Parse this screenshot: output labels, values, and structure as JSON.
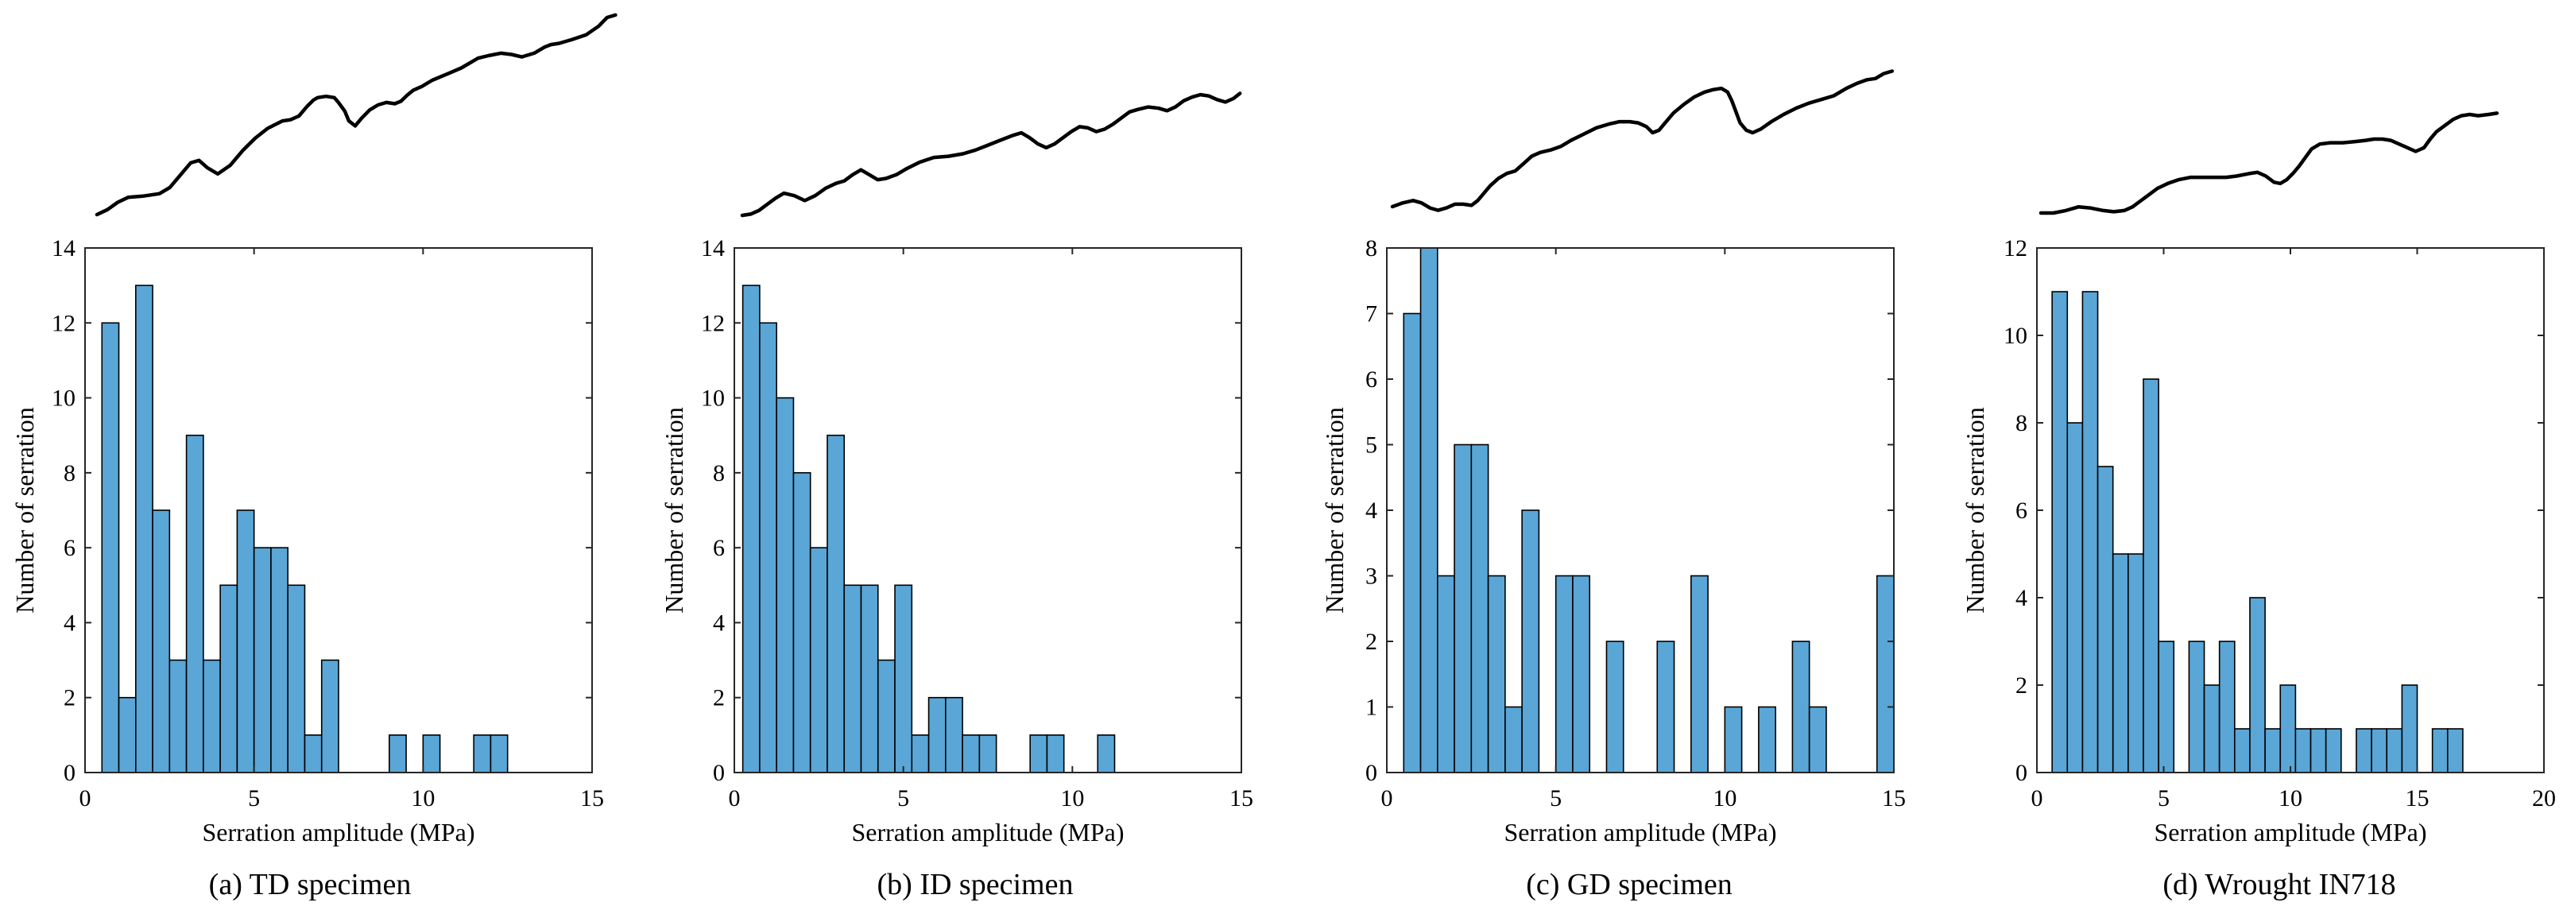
{
  "chart_data": [
    {
      "type": "bar",
      "panel_id": "a",
      "caption": "(a) TD specimen",
      "xlabel": "Serration amplitude (MPa)",
      "ylabel": "Number of serration",
      "xlim": [
        0,
        15
      ],
      "ylim": [
        0,
        14
      ],
      "xticks": [
        "0",
        "5",
        "10",
        "15"
      ],
      "yticks": [
        "0",
        "2",
        "4",
        "6",
        "8",
        "10",
        "12",
        "14"
      ],
      "bin_start": 0.5,
      "bin_width": 0.5,
      "values": [
        12,
        2,
        13,
        7,
        3,
        9,
        3,
        5,
        7,
        6,
        6,
        5,
        1,
        3,
        0,
        0,
        0,
        1,
        0,
        1,
        0,
        0,
        1,
        1,
        0,
        0,
        0,
        0,
        0
      ],
      "bar_color": "#5aa6d6",
      "curve_points": [
        [
          0,
          0
        ],
        [
          5,
          4
        ],
        [
          10,
          10
        ],
        [
          15,
          14
        ],
        [
          22,
          15
        ],
        [
          30,
          17
        ],
        [
          35,
          22
        ],
        [
          40,
          32
        ],
        [
          45,
          42
        ],
        [
          49,
          44
        ],
        [
          53,
          38
        ],
        [
          58,
          33
        ],
        [
          64,
          40
        ],
        [
          70,
          52
        ],
        [
          76,
          62
        ],
        [
          82,
          70
        ],
        [
          89,
          76
        ],
        [
          93,
          77
        ],
        [
          97,
          80
        ],
        [
          101,
          88
        ],
        [
          104,
          93
        ],
        [
          106,
          95
        ],
        [
          110,
          96
        ],
        [
          114,
          95
        ],
        [
          116,
          91
        ],
        [
          119,
          84
        ],
        [
          121,
          76
        ],
        [
          124,
          72
        ],
        [
          127,
          78
        ],
        [
          131,
          85
        ],
        [
          135,
          89
        ],
        [
          139,
          91
        ],
        [
          143,
          90
        ],
        [
          146,
          92
        ],
        [
          149,
          97
        ],
        [
          152,
          101
        ],
        [
          156,
          104
        ],
        [
          161,
          109
        ],
        [
          168,
          114
        ],
        [
          175,
          119
        ],
        [
          180,
          124
        ],
        [
          183,
          127
        ],
        [
          188,
          129
        ],
        [
          194,
          131
        ],
        [
          199,
          130
        ],
        [
          204,
          128
        ],
        [
          210,
          131
        ],
        [
          215,
          136
        ],
        [
          218,
          138
        ],
        [
          222,
          139
        ],
        [
          228,
          142
        ],
        [
          235,
          146
        ],
        [
          241,
          153
        ],
        [
          245,
          160
        ],
        [
          249,
          162
        ]
      ]
    },
    {
      "type": "bar",
      "panel_id": "b",
      "caption": "(b) ID specimen",
      "xlabel": "Serration amplitude (MPa)",
      "ylabel": "Number of serration",
      "xlim": [
        0,
        15
      ],
      "ylim": [
        0,
        14
      ],
      "xticks": [
        "0",
        "5",
        "10",
        "15"
      ],
      "yticks": [
        "0",
        "2",
        "4",
        "6",
        "8",
        "10",
        "12",
        "14"
      ],
      "bin_start": 0.25,
      "bin_width": 0.5,
      "values": [
        13,
        12,
        10,
        8,
        6,
        9,
        5,
        5,
        3,
        5,
        1,
        2,
        2,
        1,
        1,
        0,
        0,
        1,
        1,
        0,
        0,
        1,
        0,
        0,
        0,
        0,
        0,
        0,
        0
      ],
      "bar_color": "#5aa6d6",
      "curve_points": [
        [
          0,
          0
        ],
        [
          4,
          1
        ],
        [
          8,
          4
        ],
        [
          12,
          9
        ],
        [
          16,
          14
        ],
        [
          20,
          18
        ],
        [
          25,
          16
        ],
        [
          30,
          12
        ],
        [
          35,
          16
        ],
        [
          40,
          22
        ],
        [
          45,
          26
        ],
        [
          49,
          28
        ],
        [
          53,
          33
        ],
        [
          57,
          37
        ],
        [
          61,
          33
        ],
        [
          65,
          29
        ],
        [
          69,
          30
        ],
        [
          74,
          33
        ],
        [
          79,
          38
        ],
        [
          85,
          43
        ],
        [
          92,
          47
        ],
        [
          99,
          48
        ],
        [
          106,
          50
        ],
        [
          112,
          53
        ],
        [
          118,
          57
        ],
        [
          124,
          61
        ],
        [
          130,
          65
        ],
        [
          134,
          67
        ],
        [
          138,
          63
        ],
        [
          142,
          58
        ],
        [
          146,
          55
        ],
        [
          150,
          58
        ],
        [
          154,
          63
        ],
        [
          158,
          68
        ],
        [
          162,
          72
        ],
        [
          166,
          71
        ],
        [
          170,
          68
        ],
        [
          174,
          70
        ],
        [
          178,
          74
        ],
        [
          182,
          79
        ],
        [
          186,
          84
        ],
        [
          190,
          86
        ],
        [
          195,
          88
        ],
        [
          200,
          87
        ],
        [
          204,
          85
        ],
        [
          208,
          88
        ],
        [
          212,
          93
        ],
        [
          216,
          96
        ],
        [
          220,
          98
        ],
        [
          224,
          97
        ],
        [
          228,
          94
        ],
        [
          232,
          92
        ],
        [
          236,
          95
        ],
        [
          239,
          99
        ]
      ]
    },
    {
      "type": "bar",
      "panel_id": "c",
      "caption": "(c) GD specimen",
      "xlabel": "Serration amplitude (MPa)",
      "ylabel": "Number of serration",
      "xlim": [
        0,
        15
      ],
      "ylim": [
        0,
        8
      ],
      "xticks": [
        "0",
        "5",
        "10",
        "15"
      ],
      "yticks": [
        "0",
        "1",
        "2",
        "3",
        "4",
        "5",
        "6",
        "7",
        "8"
      ],
      "bin_start": 0.5,
      "bin_width": 0.5,
      "values": [
        7,
        8,
        3,
        5,
        5,
        3,
        1,
        4,
        0,
        3,
        3,
        0,
        2,
        0,
        0,
        2,
        0,
        3,
        0,
        1,
        0,
        1,
        0,
        2,
        1,
        0,
        0,
        0,
        3
      ],
      "bar_color": "#5aa6d6",
      "curve_points": [
        [
          0,
          0
        ],
        [
          5,
          3
        ],
        [
          10,
          5
        ],
        [
          14,
          3
        ],
        [
          18,
          -1
        ],
        [
          22,
          -3
        ],
        [
          26,
          -1
        ],
        [
          30,
          2
        ],
        [
          34,
          2
        ],
        [
          38,
          1
        ],
        [
          41,
          5
        ],
        [
          44,
          11
        ],
        [
          47,
          17
        ],
        [
          51,
          23
        ],
        [
          55,
          27
        ],
        [
          59,
          29
        ],
        [
          63,
          35
        ],
        [
          67,
          41
        ],
        [
          71,
          44
        ],
        [
          76,
          46
        ],
        [
          81,
          49
        ],
        [
          86,
          54
        ],
        [
          92,
          59
        ],
        [
          98,
          64
        ],
        [
          104,
          67
        ],
        [
          109,
          69
        ],
        [
          114,
          69
        ],
        [
          118,
          68
        ],
        [
          122,
          65
        ],
        [
          125,
          60
        ],
        [
          128,
          62
        ],
        [
          131,
          68
        ],
        [
          135,
          76
        ],
        [
          140,
          83
        ],
        [
          145,
          89
        ],
        [
          150,
          93
        ],
        [
          154,
          95
        ],
        [
          158,
          96
        ],
        [
          161,
          93
        ],
        [
          163,
          86
        ],
        [
          165,
          77
        ],
        [
          167,
          68
        ],
        [
          170,
          62
        ],
        [
          173,
          60
        ],
        [
          177,
          63
        ],
        [
          182,
          69
        ],
        [
          188,
          75
        ],
        [
          194,
          80
        ],
        [
          200,
          84
        ],
        [
          206,
          87
        ],
        [
          212,
          90
        ],
        [
          218,
          96
        ],
        [
          223,
          100
        ],
        [
          228,
          103
        ],
        [
          232,
          104
        ],
        [
          236,
          108
        ],
        [
          240,
          110
        ]
      ]
    },
    {
      "type": "bar",
      "panel_id": "d",
      "caption": "(d) Wrought IN718",
      "xlabel": "Serration amplitude (MPa)",
      "ylabel": "Number of serration",
      "xlim": [
        0,
        20
      ],
      "ylim": [
        0,
        12
      ],
      "xticks": [
        "0",
        "5",
        "10",
        "15",
        "20"
      ],
      "yticks": [
        "0",
        "2",
        "4",
        "6",
        "8",
        "10",
        "12"
      ],
      "bin_start": 0.6,
      "bin_width": 0.6,
      "values": [
        11,
        8,
        11,
        7,
        5,
        5,
        9,
        3,
        0,
        3,
        2,
        3,
        1,
        4,
        1,
        2,
        1,
        1,
        1,
        0,
        1,
        1,
        1,
        2,
        0,
        1,
        1,
        0,
        0,
        0
      ],
      "bar_color": "#5aa6d6",
      "curve_points": [
        [
          0,
          0
        ],
        [
          6,
          0
        ],
        [
          12,
          2
        ],
        [
          18,
          5
        ],
        [
          24,
          4
        ],
        [
          30,
          2
        ],
        [
          35,
          1
        ],
        [
          40,
          2
        ],
        [
          44,
          5
        ],
        [
          48,
          10
        ],
        [
          52,
          15
        ],
        [
          56,
          20
        ],
        [
          61,
          24
        ],
        [
          66,
          27
        ],
        [
          72,
          29
        ],
        [
          78,
          29
        ],
        [
          84,
          29
        ],
        [
          89,
          29
        ],
        [
          94,
          30
        ],
        [
          100,
          32
        ],
        [
          104,
          33
        ],
        [
          108,
          30
        ],
        [
          112,
          25
        ],
        [
          115,
          24
        ],
        [
          118,
          27
        ],
        [
          121,
          32
        ],
        [
          124,
          38
        ],
        [
          127,
          45
        ],
        [
          130,
          52
        ],
        [
          134,
          56
        ],
        [
          139,
          57
        ],
        [
          145,
          57
        ],
        [
          151,
          58
        ],
        [
          156,
          59
        ],
        [
          160,
          60
        ],
        [
          164,
          60
        ],
        [
          168,
          59
        ],
        [
          172,
          56
        ],
        [
          176,
          53
        ],
        [
          180,
          50
        ],
        [
          184,
          53
        ],
        [
          187,
          60
        ],
        [
          190,
          66
        ],
        [
          194,
          71
        ],
        [
          198,
          76
        ],
        [
          202,
          79
        ],
        [
          206,
          80
        ],
        [
          210,
          79
        ],
        [
          215,
          80
        ],
        [
          219,
          81
        ]
      ]
    }
  ]
}
